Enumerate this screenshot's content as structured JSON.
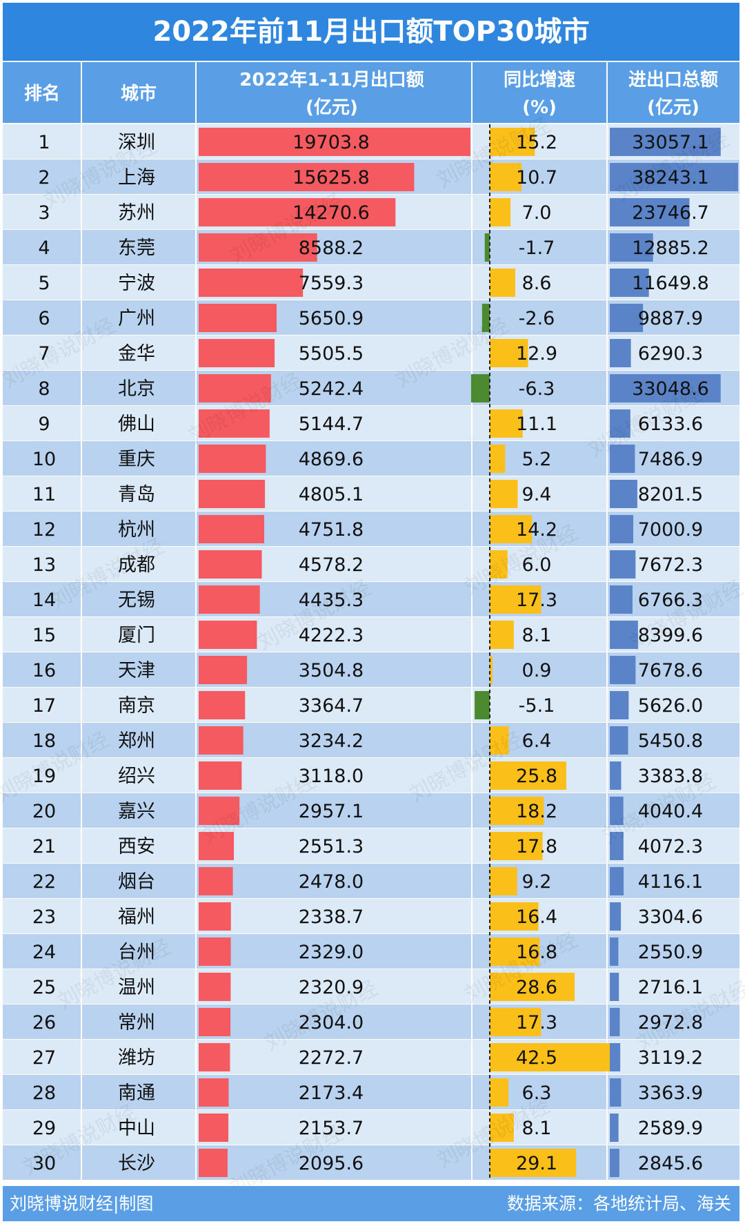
{
  "chart_data": {
    "type": "table",
    "title": "2022年前11月出口额TOP30城市",
    "headers": {
      "rank": "排名",
      "city": "城市",
      "export_line1": "2022年1-11月出口额",
      "export_line2": "(亿元)",
      "growth_line1": "同比增速",
      "growth_line2": "(%)",
      "total_line1": "进出口总额",
      "total_line2": "(亿元)"
    },
    "rows": [
      {
        "rank": "1",
        "city": "深圳",
        "export": 19703.8,
        "growth": 15.2,
        "total": 33057.1
      },
      {
        "rank": "2",
        "city": "上海",
        "export": 15625.8,
        "growth": 10.7,
        "total": 38243.1
      },
      {
        "rank": "3",
        "city": "苏州",
        "export": 14270.6,
        "growth": 7.0,
        "total": 23746.7
      },
      {
        "rank": "4",
        "city": "东莞",
        "export": 8588.2,
        "growth": -1.7,
        "total": 12885.2
      },
      {
        "rank": "5",
        "city": "宁波",
        "export": 7559.3,
        "growth": 8.6,
        "total": 11649.8
      },
      {
        "rank": "6",
        "city": "广州",
        "export": 5650.9,
        "growth": -2.6,
        "total": 9887.9
      },
      {
        "rank": "7",
        "city": "金华",
        "export": 5505.5,
        "growth": 12.9,
        "total": 6290.3
      },
      {
        "rank": "8",
        "city": "北京",
        "export": 5242.4,
        "growth": -6.3,
        "total": 33048.6
      },
      {
        "rank": "9",
        "city": "佛山",
        "export": 5144.7,
        "growth": 11.1,
        "total": 6133.6
      },
      {
        "rank": "10",
        "city": "重庆",
        "export": 4869.6,
        "growth": 5.2,
        "total": 7486.9
      },
      {
        "rank": "11",
        "city": "青岛",
        "export": 4805.1,
        "growth": 9.4,
        "total": 8201.5
      },
      {
        "rank": "12",
        "city": "杭州",
        "export": 4751.8,
        "growth": 14.2,
        "total": 7000.9
      },
      {
        "rank": "13",
        "city": "成都",
        "export": 4578.2,
        "growth": 6.0,
        "total": 7672.3
      },
      {
        "rank": "14",
        "city": "无锡",
        "export": 4435.3,
        "growth": 17.3,
        "total": 6766.3
      },
      {
        "rank": "15",
        "city": "厦门",
        "export": 4222.3,
        "growth": 8.1,
        "total": 8399.6
      },
      {
        "rank": "16",
        "city": "天津",
        "export": 3504.8,
        "growth": 0.9,
        "total": 7678.6
      },
      {
        "rank": "17",
        "city": "南京",
        "export": 3364.7,
        "growth": -5.1,
        "total": 5626.0
      },
      {
        "rank": "18",
        "city": "郑州",
        "export": 3234.2,
        "growth": 6.4,
        "total": 5450.8
      },
      {
        "rank": "19",
        "city": "绍兴",
        "export": 3118.0,
        "growth": 25.8,
        "total": 3383.8
      },
      {
        "rank": "20",
        "city": "嘉兴",
        "export": 2957.1,
        "growth": 18.2,
        "total": 4040.4
      },
      {
        "rank": "21",
        "city": "西安",
        "export": 2551.3,
        "growth": 17.8,
        "total": 4072.3
      },
      {
        "rank": "22",
        "city": "烟台",
        "export": 2478.0,
        "growth": 9.2,
        "total": 4116.1
      },
      {
        "rank": "23",
        "city": "福州",
        "export": 2338.7,
        "growth": 16.4,
        "total": 3304.6
      },
      {
        "rank": "24",
        "city": "台州",
        "export": 2329.0,
        "growth": 16.8,
        "total": 2550.9
      },
      {
        "rank": "25",
        "city": "温州",
        "export": 2320.9,
        "growth": 28.6,
        "total": 2716.1
      },
      {
        "rank": "26",
        "city": "常州",
        "export": 2304.0,
        "growth": 17.3,
        "total": 2972.8
      },
      {
        "rank": "27",
        "city": "潍坊",
        "export": 2272.7,
        "growth": 42.5,
        "total": 3119.2
      },
      {
        "rank": "28",
        "city": "南通",
        "export": 2173.4,
        "growth": 6.3,
        "total": 3363.9
      },
      {
        "rank": "29",
        "city": "中山",
        "export": 2153.7,
        "growth": 8.1,
        "total": 2589.9
      },
      {
        "rank": "30",
        "city": "长沙",
        "export": 2095.6,
        "growth": 29.1,
        "total": 2845.6
      }
    ],
    "footer_left": "刘晓博说财经|制图",
    "footer_right": "数据来源：各地统计局、海关",
    "watermark": "刘晓博说财经",
    "colors": {
      "header_bg": "#2e86de",
      "col_header_bg": "#5a9fe6",
      "row_light": "#dce9f7",
      "row_dark": "#b8d2ef",
      "export_bar": "#f45a5f",
      "growth_positive": "#fbbf1a",
      "growth_negative": "#4c8a2f",
      "total_bar": "#5a83c8",
      "footer_bg": "#5a9fe6"
    }
  }
}
